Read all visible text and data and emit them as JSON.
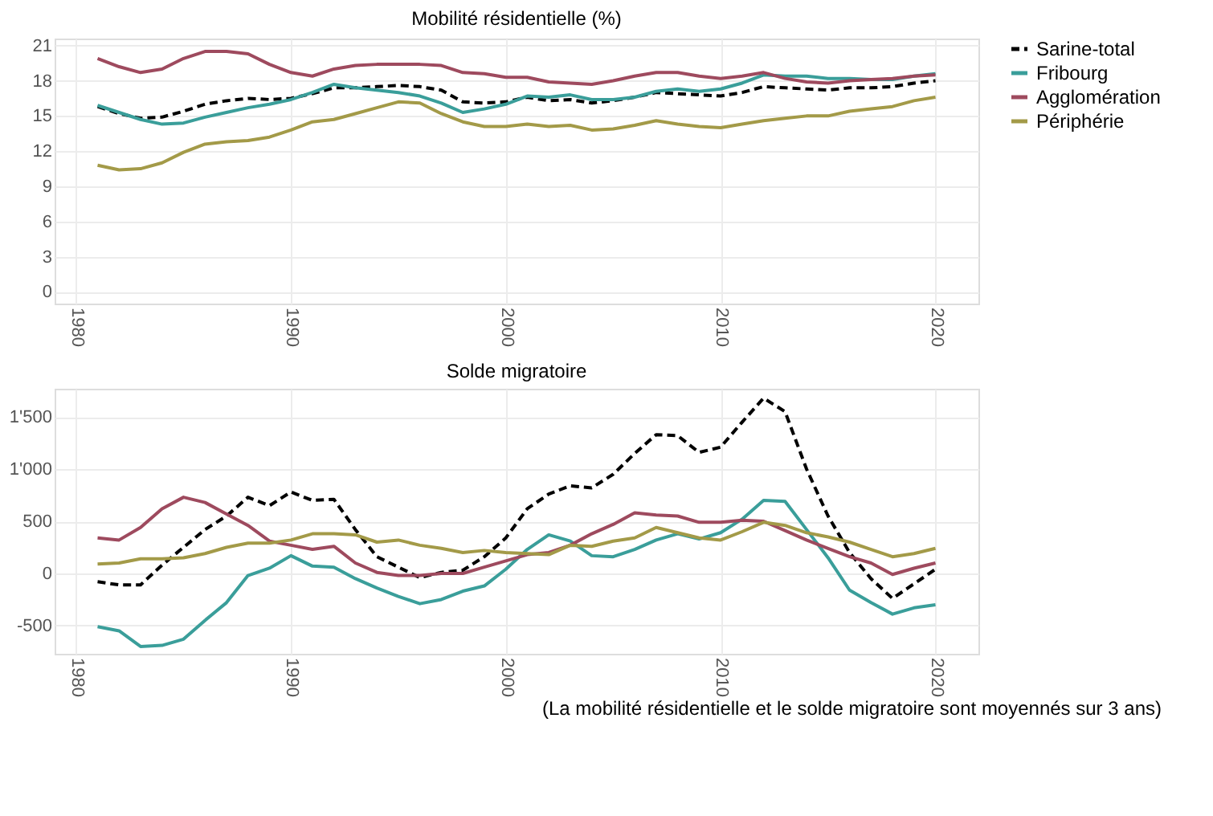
{
  "chart_data": [
    {
      "type": "line",
      "title": "Mobilité résidentielle (%)",
      "x": [
        1981,
        1982,
        1983,
        1984,
        1985,
        1986,
        1987,
        1988,
        1989,
        1990,
        1991,
        1992,
        1993,
        1994,
        1995,
        1996,
        1997,
        1998,
        1999,
        2000,
        2001,
        2002,
        2003,
        2004,
        2005,
        2006,
        2007,
        2008,
        2009,
        2010,
        2011,
        2012,
        2013,
        2014,
        2015,
        2016,
        2017,
        2018,
        2019,
        2020
      ],
      "xlim": [
        1979,
        2022
      ],
      "xticks": [
        1980,
        1990,
        2000,
        2010,
        2020
      ],
      "ylim": [
        -1,
        21.6
      ],
      "yticks": [
        0,
        3,
        6,
        9,
        12,
        15,
        18,
        21
      ],
      "grid": true,
      "legend": "right",
      "marker": "none",
      "series": [
        {
          "name": "Sarine-total",
          "color": "#000000",
          "line_style": "dashed",
          "values": [
            15.8,
            15.2,
            14.8,
            14.9,
            15.4,
            16.0,
            16.3,
            16.5,
            16.4,
            16.5,
            16.9,
            17.4,
            17.4,
            17.5,
            17.6,
            17.5,
            17.2,
            16.2,
            16.1,
            16.2,
            16.6,
            16.3,
            16.4,
            16.1,
            16.3,
            16.6,
            17.0,
            16.9,
            16.8,
            16.7,
            17.0,
            17.5,
            17.4,
            17.3,
            17.2,
            17.4,
            17.4,
            17.5,
            17.8,
            18.0
          ]
        },
        {
          "name": "Fribourg",
          "color": "#3a9e9a",
          "line_style": "solid",
          "values": [
            15.9,
            15.3,
            14.7,
            14.3,
            14.4,
            14.9,
            15.3,
            15.7,
            16.0,
            16.4,
            17.0,
            17.7,
            17.4,
            17.2,
            17.0,
            16.7,
            16.1,
            15.3,
            15.6,
            16.0,
            16.7,
            16.6,
            16.8,
            16.4,
            16.4,
            16.6,
            17.1,
            17.3,
            17.1,
            17.3,
            17.8,
            18.5,
            18.4,
            18.4,
            18.2,
            18.2,
            18.1,
            18.1,
            18.4,
            18.6
          ]
        },
        {
          "name": "Agglomération",
          "color": "#9e4a5e",
          "line_style": "solid",
          "values": [
            19.9,
            19.2,
            18.7,
            19.0,
            19.9,
            20.5,
            20.5,
            20.3,
            19.4,
            18.7,
            18.4,
            19.0,
            19.3,
            19.4,
            19.4,
            19.4,
            19.3,
            18.7,
            18.6,
            18.3,
            18.3,
            17.9,
            17.8,
            17.7,
            18.0,
            18.4,
            18.7,
            18.7,
            18.4,
            18.2,
            18.4,
            18.7,
            18.2,
            17.9,
            17.8,
            18.0,
            18.1,
            18.2,
            18.4,
            18.5
          ]
        },
        {
          "name": "Périphérie",
          "color": "#a39a48",
          "line_style": "solid",
          "values": [
            10.8,
            10.4,
            10.5,
            11.0,
            11.9,
            12.6,
            12.8,
            12.9,
            13.2,
            13.8,
            14.5,
            14.7,
            15.2,
            15.7,
            16.2,
            16.1,
            15.2,
            14.5,
            14.1,
            14.1,
            14.3,
            14.1,
            14.2,
            13.8,
            13.9,
            14.2,
            14.6,
            14.3,
            14.1,
            14.0,
            14.3,
            14.6,
            14.8,
            15.0,
            15.0,
            15.4,
            15.6,
            15.8,
            16.3,
            16.6
          ]
        }
      ]
    },
    {
      "type": "line",
      "title": "Solde migratoire",
      "x": [
        1981,
        1982,
        1983,
        1984,
        1985,
        1986,
        1987,
        1988,
        1989,
        1990,
        1991,
        1992,
        1993,
        1994,
        1995,
        1996,
        1997,
        1998,
        1999,
        2000,
        2001,
        2002,
        2003,
        2004,
        2005,
        2006,
        2007,
        2008,
        2009,
        2010,
        2011,
        2012,
        2013,
        2014,
        2015,
        2016,
        2017,
        2018,
        2019,
        2020
      ],
      "xlim": [
        1979,
        2022
      ],
      "xticks": [
        1980,
        1990,
        2000,
        2010,
        2020
      ],
      "ylim": [
        -770,
        1770
      ],
      "yticks": [
        {
          "value": -500,
          "label": "-500"
        },
        0,
        500,
        {
          "value": 1000,
          "label": "1'000"
        },
        {
          "value": 1500,
          "label": "1'500"
        }
      ],
      "grid": true,
      "legend": "right",
      "marker": "none",
      "annotations": [
        "(La mobilité résidentielle et le solde migratoire sont moyennés sur 3 ans)"
      ],
      "series": [
        {
          "name": "Sarine-total",
          "color": "#000000",
          "line_style": "dashed",
          "values": [
            -80,
            -110,
            -110,
            80,
            250,
            420,
            550,
            730,
            650,
            780,
            700,
            710,
            420,
            160,
            60,
            -40,
            10,
            30,
            160,
            340,
            620,
            760,
            840,
            820,
            950,
            1150,
            1330,
            1320,
            1160,
            1210,
            1450,
            1680,
            1550,
            1000,
            550,
            200,
            -50,
            -240,
            -100,
            40
          ]
        },
        {
          "name": "Fribourg",
          "color": "#3a9e9a",
          "line_style": "solid",
          "values": [
            -510,
            -550,
            -700,
            -690,
            -630,
            -450,
            -280,
            -20,
            50,
            170,
            70,
            60,
            -50,
            -140,
            -220,
            -290,
            -250,
            -170,
            -120,
            40,
            230,
            370,
            310,
            170,
            160,
            230,
            320,
            380,
            330,
            390,
            520,
            700,
            690,
            420,
            150,
            -160,
            -280,
            -390,
            -330,
            -300
          ]
        },
        {
          "name": "Agglomération",
          "color": "#9e4a5e",
          "line_style": "solid",
          "values": [
            340,
            320,
            440,
            620,
            730,
            680,
            570,
            460,
            310,
            270,
            230,
            260,
            100,
            10,
            -20,
            -20,
            0,
            0,
            60,
            120,
            180,
            200,
            270,
            380,
            470,
            580,
            560,
            550,
            490,
            490,
            510,
            500,
            410,
            320,
            240,
            160,
            100,
            -10,
            50,
            100
          ]
        },
        {
          "name": "Périphérie",
          "color": "#a39a48",
          "line_style": "solid",
          "values": [
            90,
            100,
            140,
            140,
            150,
            190,
            250,
            290,
            290,
            320,
            380,
            380,
            370,
            300,
            320,
            270,
            240,
            200,
            220,
            200,
            190,
            180,
            270,
            260,
            310,
            340,
            440,
            390,
            340,
            320,
            400,
            490,
            460,
            390,
            350,
            300,
            230,
            160,
            190,
            240
          ]
        }
      ]
    }
  ]
}
